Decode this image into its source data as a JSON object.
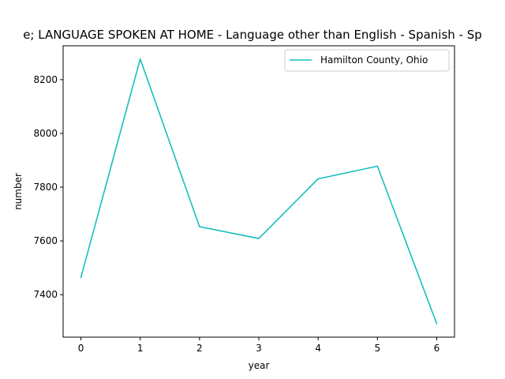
{
  "chart_data": {
    "type": "line",
    "title": "e; LANGUAGE SPOKEN AT HOME - Language other than English - Spanish - Sp",
    "xlabel": "year",
    "ylabel": "number",
    "x": [
      0,
      1,
      2,
      3,
      4,
      5,
      6
    ],
    "x_ticks": [
      "0",
      "1",
      "2",
      "3",
      "4",
      "5",
      "6"
    ],
    "y_ticks": [
      "7400",
      "7600",
      "7800",
      "8000",
      "8200"
    ],
    "xlim": [
      -0.3,
      6.3
    ],
    "ylim": [
      7242,
      8326
    ],
    "grid": false,
    "legend_position": "top-right",
    "series": [
      {
        "name": "Hamilton County, Ohio",
        "color": "#17bfc0",
        "values": [
          7464,
          8277,
          7653,
          7609,
          7831,
          7878,
          7292
        ]
      }
    ]
  }
}
